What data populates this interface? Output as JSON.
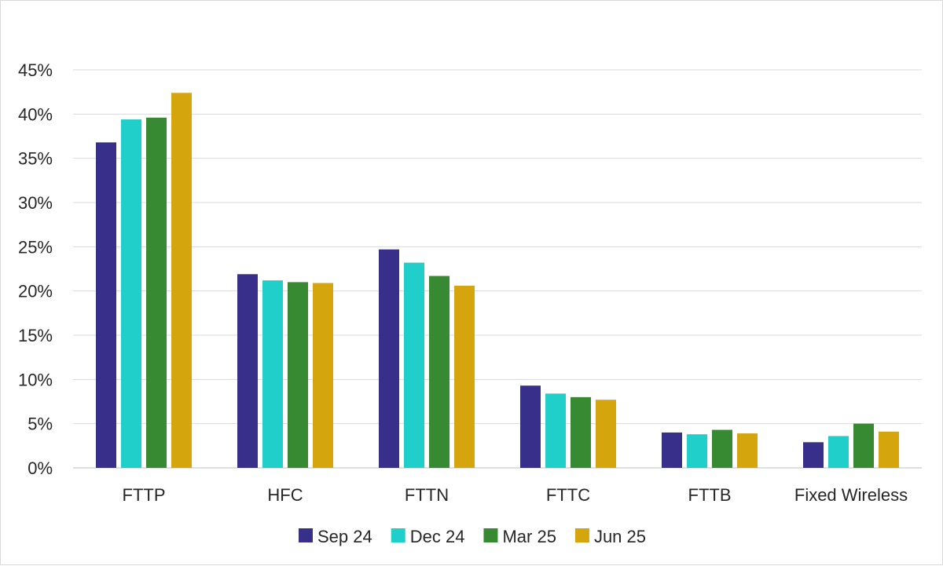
{
  "chart_data": {
    "type": "bar",
    "categories": [
      "FTTP",
      "HFC",
      "FTTN",
      "FTTC",
      "FTTB",
      "Fixed Wireless"
    ],
    "series": [
      {
        "name": "Sep 24",
        "color": "#372f8a",
        "values": [
          36.8,
          21.9,
          24.7,
          9.3,
          4.0,
          2.9
        ]
      },
      {
        "name": "Dec 24",
        "color": "#20cfc9",
        "values": [
          39.4,
          21.2,
          23.2,
          8.4,
          3.8,
          3.6
        ]
      },
      {
        "name": "Mar 25",
        "color": "#378a32",
        "values": [
          39.6,
          21.0,
          21.7,
          8.0,
          4.3,
          5.0
        ]
      },
      {
        "name": "Jun 25",
        "color": "#d4a50c",
        "values": [
          42.4,
          20.9,
          20.6,
          7.7,
          3.9,
          4.1
        ]
      }
    ],
    "ylim": [
      0,
      45
    ],
    "yticks": [
      "0%",
      "5%",
      "10%",
      "15%",
      "20%",
      "25%",
      "30%",
      "35%",
      "40%",
      "45%"
    ],
    "grid": true,
    "legend_position": "bottom",
    "title": "",
    "xlabel": "",
    "ylabel": ""
  }
}
